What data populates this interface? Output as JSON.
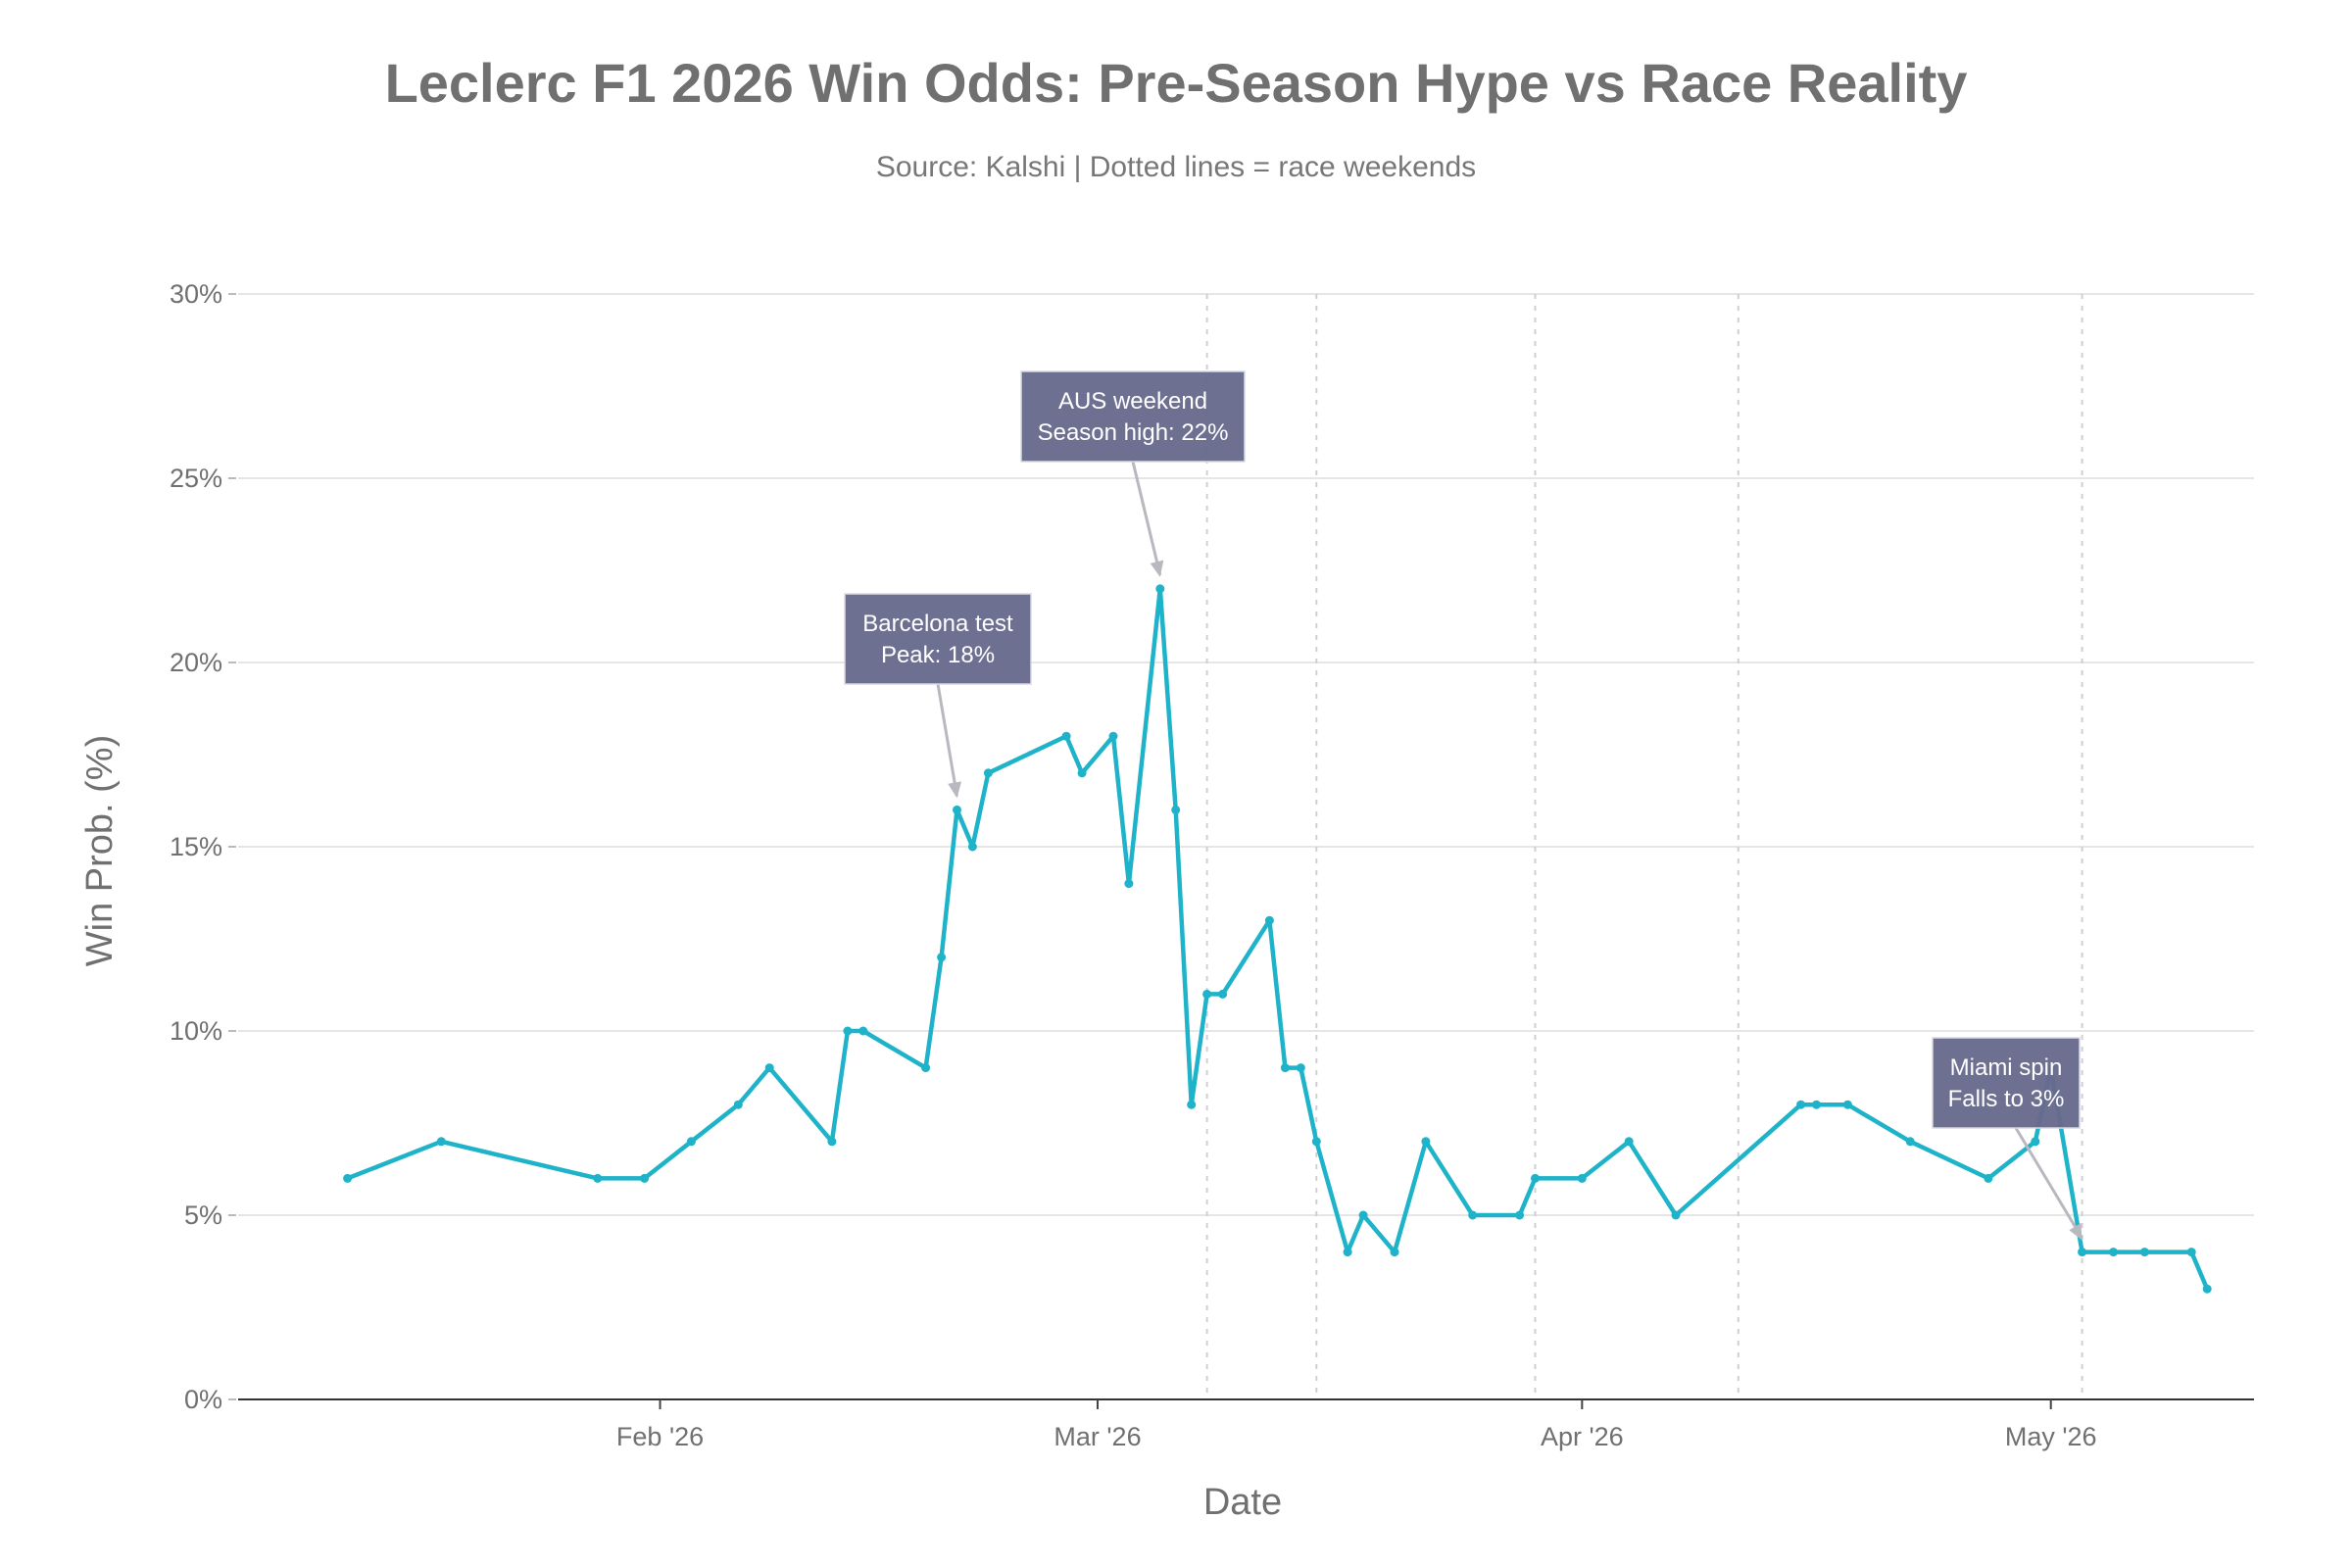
{
  "chart_data": {
    "type": "line",
    "title": "Leclerc F1 2026 Win Odds: Pre-Season Hype vs Race Reality",
    "subtitle": "Source: Kalshi | Dotted lines = race weekends",
    "xlabel": "Date",
    "ylabel": "Win Prob. (%)",
    "ylim": [
      0,
      30
    ],
    "yticks": [
      0,
      5,
      10,
      15,
      20,
      25,
      30
    ],
    "ytick_labels": [
      "0%",
      "5%",
      "10%",
      "15%",
      "20%",
      "25%",
      "30%"
    ],
    "xlim": [
      "2026-01-05",
      "2026-05-14"
    ],
    "xticks": [
      {
        "date": "2026-02-01",
        "label": "Feb '26"
      },
      {
        "date": "2026-03-01",
        "label": "Mar '26"
      },
      {
        "date": "2026-04-01",
        "label": "Apr '26"
      },
      {
        "date": "2026-05-01",
        "label": "May '26"
      }
    ],
    "grid": true,
    "race_weekends": [
      "2026-03-08",
      "2026-03-15",
      "2026-03-29",
      "2026-04-11",
      "2026-05-03"
    ],
    "series": [
      {
        "color": "#1fb3c9",
        "points": [
          [
            "2026-01-12",
            6
          ],
          [
            "2026-01-18",
            7
          ],
          [
            "2026-01-28",
            6
          ],
          [
            "2026-01-31",
            6
          ],
          [
            "2026-02-03",
            7
          ],
          [
            "2026-02-06",
            8
          ],
          [
            "2026-02-08",
            9
          ],
          [
            "2026-02-12",
            7
          ],
          [
            "2026-02-13",
            10
          ],
          [
            "2026-02-14",
            10
          ],
          [
            "2026-02-18",
            9
          ],
          [
            "2026-02-19",
            12
          ],
          [
            "2026-02-20",
            16
          ],
          [
            "2026-02-21",
            15
          ],
          [
            "2026-02-22",
            17
          ],
          [
            "2026-02-27",
            18
          ],
          [
            "2026-02-28",
            17
          ],
          [
            "2026-03-02",
            18
          ],
          [
            "2026-03-03",
            14
          ],
          [
            "2026-03-05",
            22
          ],
          [
            "2026-03-06",
            16
          ],
          [
            "2026-03-07",
            8
          ],
          [
            "2026-03-08",
            11
          ],
          [
            "2026-03-09",
            11
          ],
          [
            "2026-03-12",
            13
          ],
          [
            "2026-03-13",
            9
          ],
          [
            "2026-03-14",
            9
          ],
          [
            "2026-03-15",
            7
          ],
          [
            "2026-03-17",
            4
          ],
          [
            "2026-03-18",
            5
          ],
          [
            "2026-03-20",
            4
          ],
          [
            "2026-03-22",
            7
          ],
          [
            "2026-03-25",
            5
          ],
          [
            "2026-03-28",
            5
          ],
          [
            "2026-03-29",
            6
          ],
          [
            "2026-04-01",
            6
          ],
          [
            "2026-04-04",
            7
          ],
          [
            "2026-04-07",
            5
          ],
          [
            "2026-04-15",
            8
          ],
          [
            "2026-04-16",
            8
          ],
          [
            "2026-04-18",
            8
          ],
          [
            "2026-04-22",
            7
          ],
          [
            "2026-04-27",
            6
          ],
          [
            "2026-04-30",
            7
          ],
          [
            "2026-05-01",
            9
          ],
          [
            "2026-05-03",
            4
          ],
          [
            "2026-05-05",
            4
          ],
          [
            "2026-05-07",
            4
          ],
          [
            "2026-05-10",
            4
          ],
          [
            "2026-05-11",
            3
          ]
        ]
      }
    ],
    "annotations": [
      {
        "lines": [
          "Barcelona test",
          "Peak: 18%"
        ],
        "target": [
          "2026-02-20",
          16
        ]
      },
      {
        "lines": [
          "AUS weekend",
          "Season high: 22%"
        ],
        "target": [
          "2026-03-05",
          22
        ]
      },
      {
        "lines": [
          "Miami spin",
          "Falls to 3%"
        ],
        "target": [
          "2026-05-03",
          4
        ]
      }
    ]
  }
}
